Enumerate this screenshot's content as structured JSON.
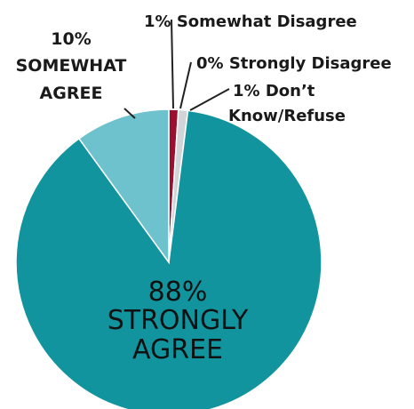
{
  "chart_data": {
    "type": "pie",
    "slices": [
      {
        "label": "Somewhat Disagree",
        "value": 1,
        "color": "#9b1030"
      },
      {
        "label": "Strongly Disagree",
        "value": 0,
        "color": "#ffffff"
      },
      {
        "label": "Don't Know/Refuse",
        "value": 1,
        "color": "#d2d5d8"
      },
      {
        "label": "Strongly Agree",
        "value": 88,
        "color": "#12949f"
      },
      {
        "label": "Somewhat Agree",
        "value": 10,
        "color": "#6ec2cd"
      }
    ],
    "labels": {
      "somewhat_disagree": "1% Somewhat Disagree",
      "strongly_disagree": "0% Strongly Disagree",
      "dont_know_line1": "1% Don’t",
      "dont_know_line2": "Know/Refuse",
      "somewhat_agree_line1": "10%",
      "somewhat_agree_line2": "SOMEWHAT",
      "somewhat_agree_line3": "AGREE",
      "strongly_agree_line1": "88%",
      "strongly_agree_line2": "STRONGLY",
      "strongly_agree_line3": "AGREE"
    },
    "leader_line_color": "#222222"
  }
}
